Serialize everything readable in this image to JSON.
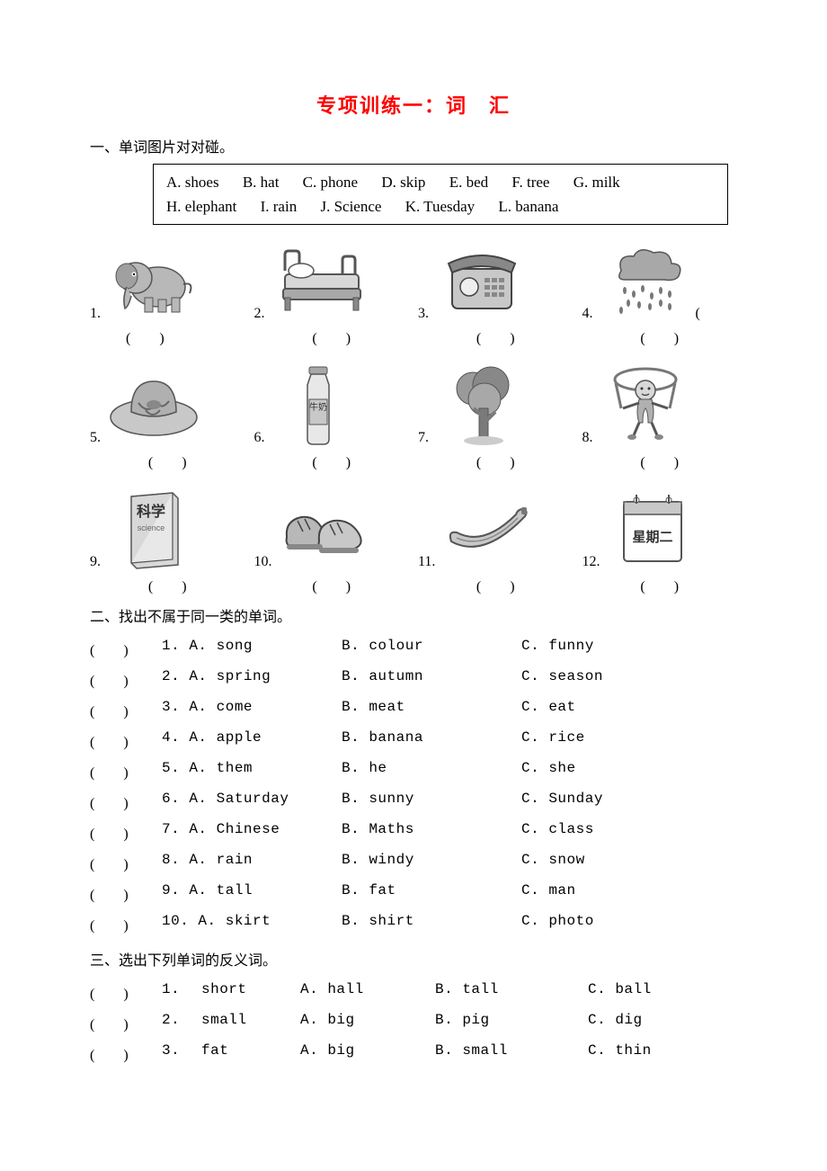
{
  "title": "专项训练一：词　汇",
  "colors": {
    "title": "#ff0000",
    "text": "#000000",
    "bg": "#ffffff",
    "border": "#000000",
    "gray_fill": "#b8b8b8",
    "gray_dark": "#7a7a7a",
    "gray_light": "#d8d8d8"
  },
  "section1": {
    "heading": "一、单词图片对对碰。",
    "bank": [
      "A. shoes",
      "B. hat",
      "C. phone",
      "D. skip",
      "E. bed",
      "F. tree",
      "G. milk",
      "H. elephant",
      "I. rain",
      "J. Science",
      "K. Tuesday",
      "L. banana"
    ],
    "items": [
      {
        "n": "1.",
        "icon": "elephant"
      },
      {
        "n": "2.",
        "icon": "bed"
      },
      {
        "n": "3.",
        "icon": "phone"
      },
      {
        "n": "4.",
        "icon": "rain"
      },
      {
        "n": "5.",
        "icon": "hat"
      },
      {
        "n": "6.",
        "icon": "milk"
      },
      {
        "n": "7.",
        "icon": "tree"
      },
      {
        "n": "8.",
        "icon": "skip"
      },
      {
        "n": "9.",
        "icon": "science"
      },
      {
        "n": "10.",
        "icon": "shoes"
      },
      {
        "n": "11.",
        "icon": "banana"
      },
      {
        "n": "12.",
        "icon": "tuesday"
      }
    ],
    "slot": "(　　)"
  },
  "section2": {
    "heading": "二、找出不属于同一类的单词。",
    "rows": [
      {
        "n": "1.",
        "a": "song",
        "b": "colour",
        "c": "funny"
      },
      {
        "n": "2.",
        "a": "spring",
        "b": "autumn",
        "c": "season"
      },
      {
        "n": "3.",
        "a": "come",
        "b": "meat",
        "c": "eat"
      },
      {
        "n": "4.",
        "a": "apple",
        "b": "banana",
        "c": "rice"
      },
      {
        "n": "5.",
        "a": "them",
        "b": "he",
        "c": "she"
      },
      {
        "n": "6.",
        "a": "Saturday",
        "b": "sunny",
        "c": "Sunday"
      },
      {
        "n": "7.",
        "a": "Chinese",
        "b": "Maths",
        "c": "class"
      },
      {
        "n": "8.",
        "a": "rain",
        "b": "windy",
        "c": "snow"
      },
      {
        "n": "9.",
        "a": "tall",
        "b": "fat",
        "c": "man"
      },
      {
        "n": "10.",
        "a": "skirt",
        "b": "shirt",
        "c": "photo"
      }
    ],
    "paren": "(　　)",
    "labelA": "A.",
    "labelB": "B.",
    "labelC": "C."
  },
  "section3": {
    "heading": "三、选出下列单词的反义词。",
    "rows": [
      {
        "n": "1.",
        "w": "short",
        "a": "hall",
        "b": "tall",
        "c": "ball"
      },
      {
        "n": "2.",
        "w": "small",
        "a": "big",
        "b": "pig",
        "c": "dig"
      },
      {
        "n": "3.",
        "w": "fat",
        "a": "big",
        "b": "small",
        "c": "thin"
      }
    ],
    "paren": "(　　)",
    "labelA": "A.",
    "labelB": "B.",
    "labelC": "C."
  },
  "icon_labels": {
    "milk_text": "牛奶",
    "science_zh": "科学",
    "science_en": "science",
    "tuesday_text": "星期二"
  }
}
